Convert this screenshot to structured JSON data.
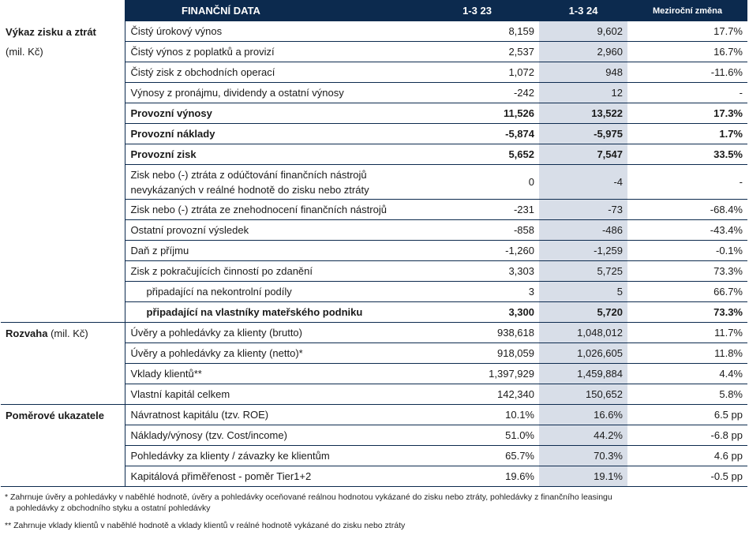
{
  "header": {
    "title": "FINANČNÍ DATA",
    "col1": "1-3 23",
    "col2": "1-3 24",
    "col3": "Meziroční změna"
  },
  "sections": {
    "pl_title": "Výkaz zisku a ztrát",
    "pl_unit": "(mil. Kč)",
    "bs_title": "Rozvaha",
    "bs_unit": "(mil. Kč)",
    "ratio_title": "Poměrové ukazatele"
  },
  "rows": [
    {
      "label": "Čistý úrokový výnos",
      "v1": "8,159",
      "v2": "9,602",
      "chg": "17.7%"
    },
    {
      "label": "Čistý výnos z poplatků a provizí",
      "v1": "2,537",
      "v2": "2,960",
      "chg": "16.7%"
    },
    {
      "label": "Čistý zisk z obchodních operací",
      "v1": "1,072",
      "v2": "948",
      "chg": "-11.6%"
    },
    {
      "label": "Výnosy z pronájmu, dividendy a ostatní výnosy",
      "v1": "-242",
      "v2": "12",
      "chg": "-"
    },
    {
      "label": "Provozní výnosy",
      "v1": "11,526",
      "v2": "13,522",
      "chg": "17.3%"
    },
    {
      "label": "Provozní náklady",
      "v1": "-5,874",
      "v2": "-5,975",
      "chg": "1.7%"
    },
    {
      "label": "Provozní zisk",
      "v1": "5,652",
      "v2": "7,547",
      "chg": "33.5%"
    },
    {
      "label": "Zisk nebo (-) ztráta z odúčtování finančních nástrojů nevykázaných v reálné hodnotě do zisku nebo ztráty",
      "v1": "0",
      "v2": "-4",
      "chg": "-"
    },
    {
      "label": "Zisk nebo (-) ztráta ze znehodnocení finančních nástrojů",
      "v1": "-231",
      "v2": "-73",
      "chg": "-68.4%"
    },
    {
      "label": "Ostatní provozní výsledek",
      "v1": "-858",
      "v2": "-486",
      "chg": "-43.4%"
    },
    {
      "label": "Daň z příjmu",
      "v1": "-1,260",
      "v2": "-1,259",
      "chg": "-0.1%"
    },
    {
      "label": "Zisk z pokračujících činností po zdanění",
      "v1": "3,303",
      "v2": "5,725",
      "chg": "73.3%"
    },
    {
      "label": "připadající na nekontrolní podíly",
      "v1": "3",
      "v2": "5",
      "chg": "66.7%"
    },
    {
      "label": "připadající na vlastníky mateřského podniku",
      "v1": "3,300",
      "v2": "5,720",
      "chg": "73.3%"
    },
    {
      "label": "Úvěry a pohledávky za klienty (brutto)",
      "v1": "938,618",
      "v2": "1,048,012",
      "chg": "11.7%"
    },
    {
      "label": "Úvěry a pohledávky za klienty (netto)*",
      "v1": "918,059",
      "v2": "1,026,605",
      "chg": "11.8%"
    },
    {
      "label": "Vklady klientů**",
      "v1": "1,397,929",
      "v2": "1,459,884",
      "chg": "4.4%"
    },
    {
      "label": "Vlastní kapitál celkem",
      "v1": "142,340",
      "v2": "150,652",
      "chg": "5.8%"
    },
    {
      "label": "Návratnost kapitálu (tzv. ROE)",
      "v1": "10.1%",
      "v2": "16.6%",
      "chg": "6.5 pp"
    },
    {
      "label": "Náklady/výnosy (tzv. Cost/income)",
      "v1": "51.0%",
      "v2": "44.2%",
      "chg": "-6.8 pp"
    },
    {
      "label": "Pohledávky za klienty / závazky ke klientům",
      "v1": "65.7%",
      "v2": "70.3%",
      "chg": "4.6 pp"
    },
    {
      "label": "Kapitálová přiměřenost - poměr Tier1+2",
      "v1": "19.6%",
      "v2": "19.1%",
      "chg": "-0.5 pp"
    }
  ],
  "notes": {
    "n1a": "* Zahrnuje úvěry a pohledávky v naběhlé hodnotě, úvěry a pohledávky oceňované reálnou hodnotou vykázané do zisku nebo ztráty, pohledávky z finančního leasingu",
    "n1b": "a pohledávky z obchodního styku a ostatní pohledávky",
    "n2": "** Zahrnuje vklady klientů v naběhlé hodnotě a vklady klientů v reálné hodnotě vykázané do zisku nebo ztráty"
  },
  "colors": {
    "header_bg": "#0c2a4e",
    "highlight_col": "#d8dee8"
  }
}
